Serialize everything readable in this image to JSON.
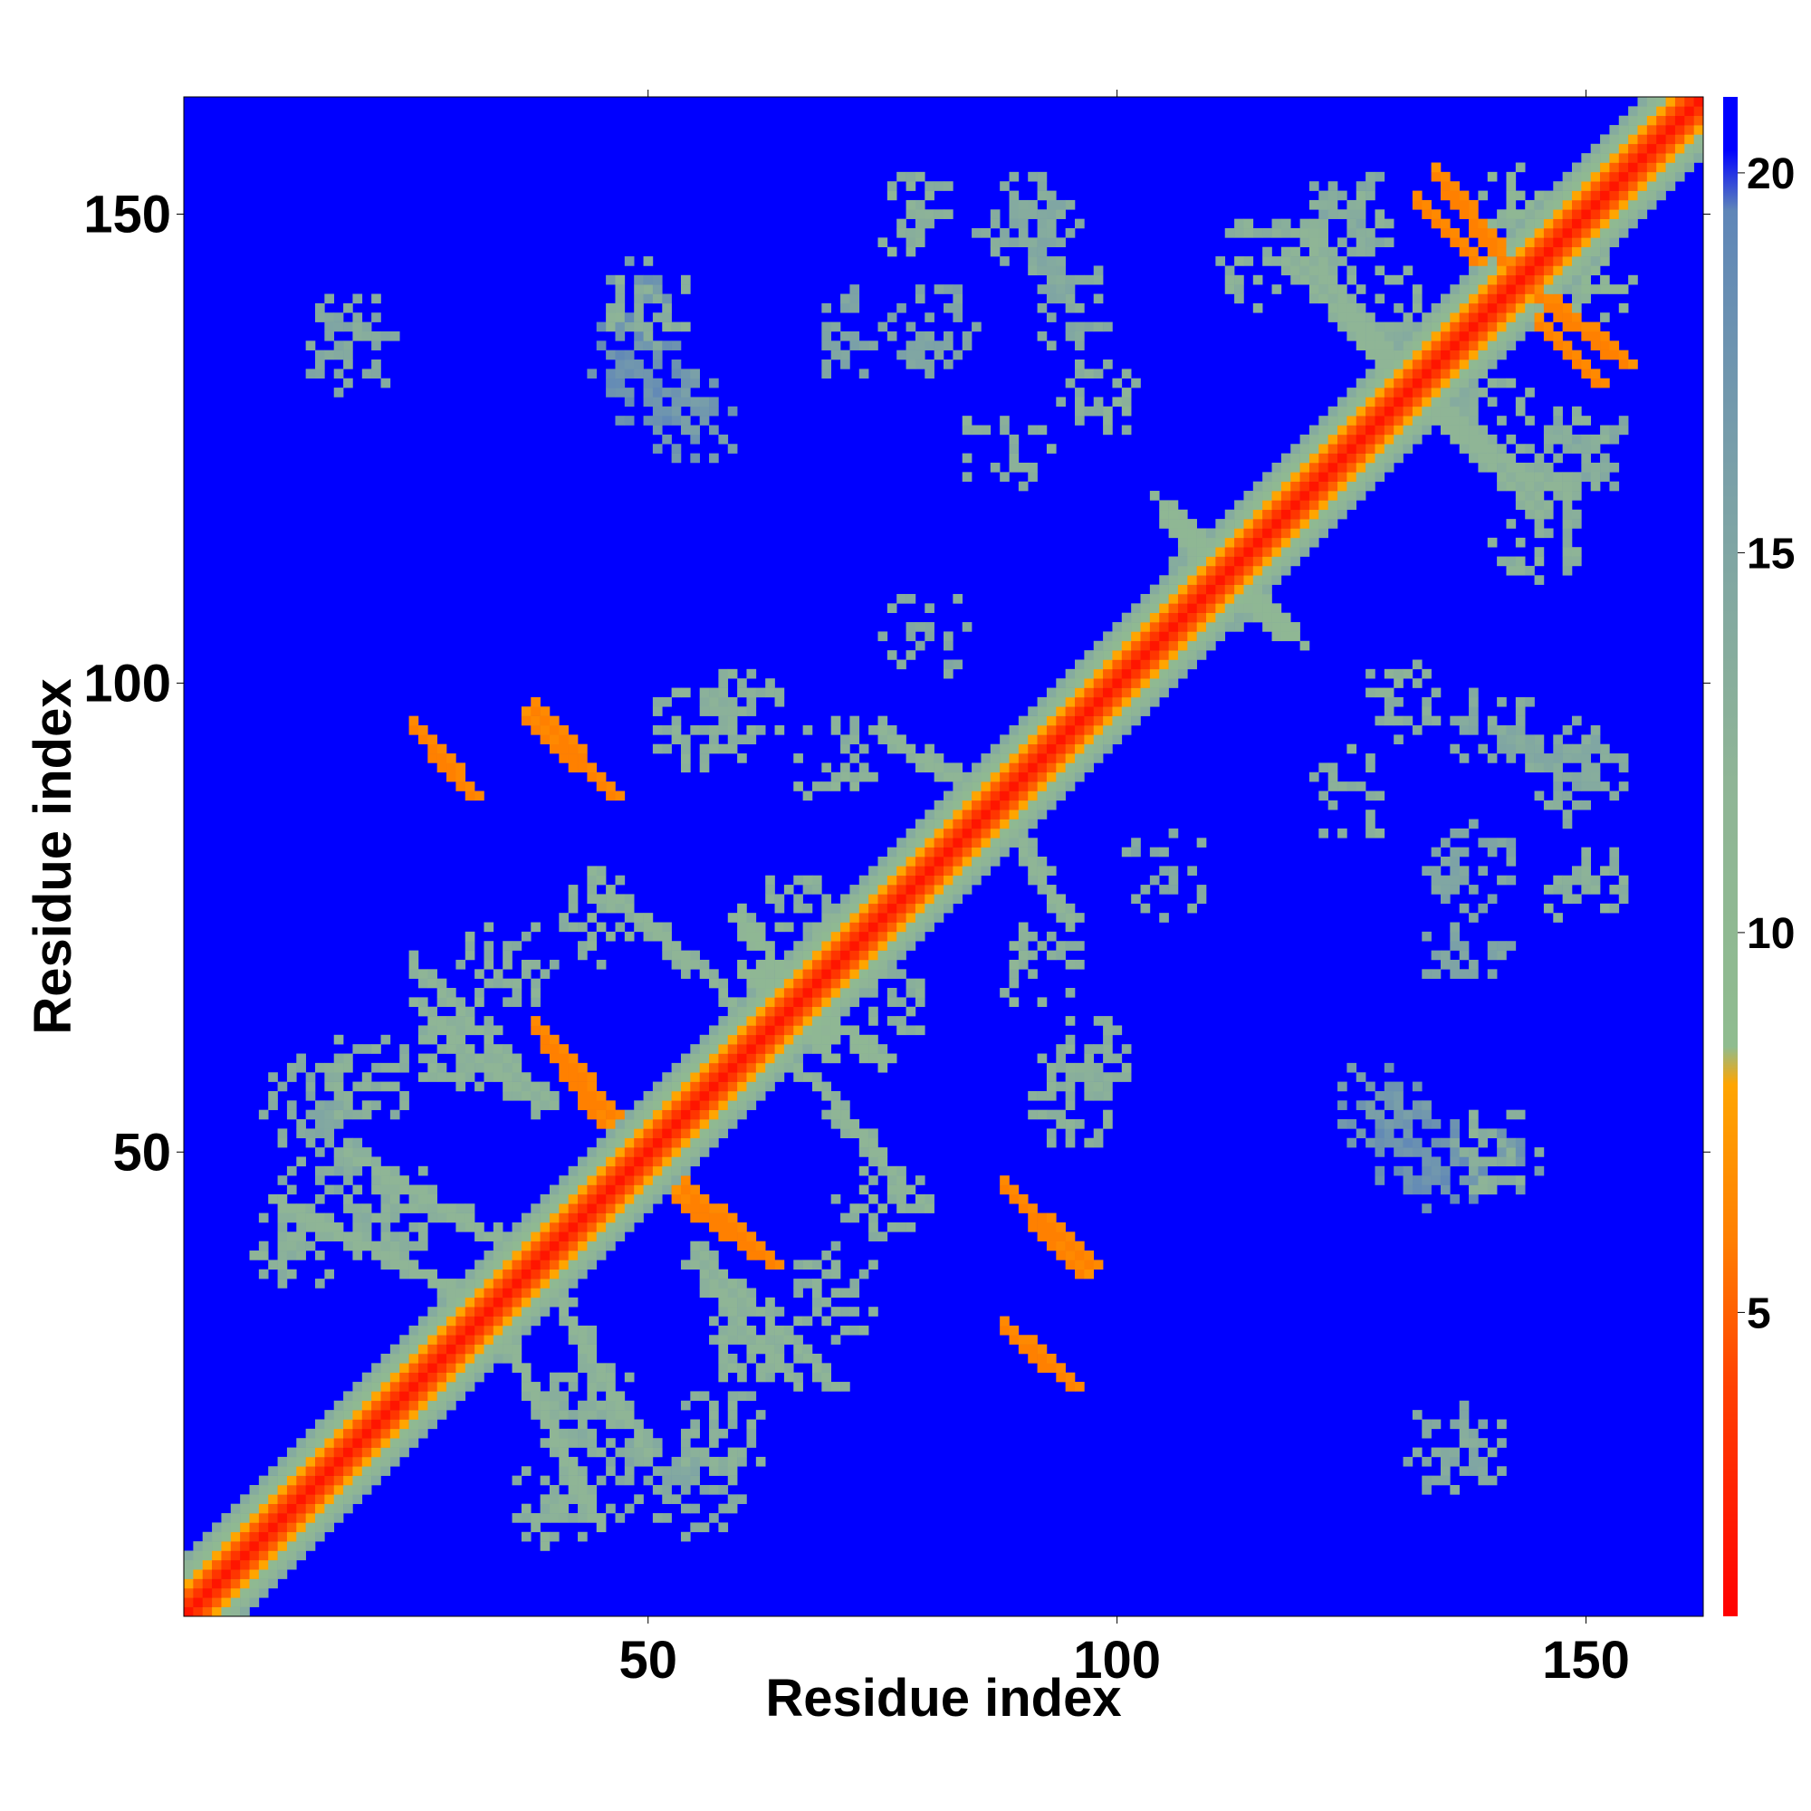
{
  "chart_data": {
    "type": "heatmap",
    "title": "",
    "xlabel": "Residue index",
    "ylabel": "Residue index",
    "xlim": [
      1,
      162
    ],
    "ylim": [
      1,
      162
    ],
    "xticks": [
      50,
      100,
      150
    ],
    "yticks": [
      50,
      100,
      150
    ],
    "colorbar": {
      "range": [
        1,
        21
      ],
      "ticks": [
        5,
        10,
        15,
        20
      ],
      "stops": [
        {
          "value": 1,
          "color": "#ff0000"
        },
        {
          "value": 4,
          "color": "#ff4000"
        },
        {
          "value": 6,
          "color": "#ff8000"
        },
        {
          "value": 8,
          "color": "#ffa500"
        },
        {
          "value": 8.5,
          "color": "#8fbc8f"
        },
        {
          "value": 12,
          "color": "#8fb596"
        },
        {
          "value": 16,
          "color": "#7aa0a8"
        },
        {
          "value": 19.5,
          "color": "#5f86b8"
        },
        {
          "value": 20.3,
          "color": "#0000ff"
        },
        {
          "value": 21,
          "color": "#0000ff"
        }
      ]
    },
    "background_value": 21,
    "diagonal_band_profile": [
      {
        "offset": 0,
        "value": 2
      },
      {
        "offset": 1,
        "value": 3.5
      },
      {
        "offset": 2,
        "value": 5
      },
      {
        "offset": 3,
        "value": 8
      },
      {
        "offset": 4,
        "value": 10
      },
      {
        "offset": 5,
        "value": 12
      },
      {
        "offset": 6,
        "value": 14
      }
    ],
    "contact_segments": [
      {
        "from": [
          26,
          94
        ],
        "to": [
          31,
          88
        ],
        "value": 6
      },
      {
        "from": [
          37,
          96
        ],
        "to": [
          46,
          88
        ],
        "value": 6
      },
      {
        "from": [
          38,
          63
        ],
        "to": [
          46,
          54
        ],
        "value": 6
      },
      {
        "from": [
          53,
          45
        ],
        "to": [
          63,
          38
        ],
        "value": 6
      },
      {
        "from": [
          88,
          46
        ],
        "to": [
          97,
          38
        ],
        "value": 6
      },
      {
        "from": [
          88,
          31
        ],
        "to": [
          95,
          25
        ],
        "value": 6
      },
      {
        "from": [
          134,
          154
        ],
        "to": [
          141,
          145
        ],
        "value": 6
      },
      {
        "from": [
          145,
          138
        ],
        "to": [
          151,
          132
        ],
        "value": 6
      },
      {
        "from": [
          104,
          120
        ],
        "to": [
          118,
          105
        ],
        "value": 11
      },
      {
        "from": [
          130,
          130
        ],
        "to": [
          148,
          120
        ],
        "value": 12
      },
      {
        "from": [
          120,
          145
        ],
        "to": [
          145,
          118
        ],
        "value": 12
      },
      {
        "from": [
          60,
          70
        ],
        "to": [
          75,
          60
        ],
        "value": 11
      },
      {
        "from": [
          44,
          80
        ],
        "to": [
          60,
          65
        ],
        "value": 12
      },
      {
        "from": [
          25,
          66
        ],
        "to": [
          38,
          55
        ],
        "value": 12
      },
      {
        "from": [
          55,
          40
        ],
        "to": [
          70,
          25
        ],
        "value": 12
      },
      {
        "from": [
          40,
          35
        ],
        "to": [
          50,
          18
        ],
        "value": 12
      },
      {
        "from": [
          85,
          90
        ],
        "to": [
          95,
          75
        ],
        "value": 12
      },
      {
        "from": [
          10,
          45
        ],
        "to": [
          30,
          35
        ],
        "value": 12
      }
    ],
    "contact_clusters": [
      {
        "center": [
          50,
          140
        ],
        "value": 12
      },
      {
        "center": [
          48,
          135
        ],
        "value": 17
      },
      {
        "center": [
          18,
          137
        ],
        "value": 13
      },
      {
        "center": [
          55,
          128
        ],
        "value": 16
      },
      {
        "center": [
          72,
          137
        ],
        "value": 14
      },
      {
        "center": [
          90,
          148
        ],
        "value": 13
      },
      {
        "center": [
          115,
          145
        ],
        "value": 12
      },
      {
        "center": [
          125,
          150
        ],
        "value": 13
      },
      {
        "center": [
          140,
          130
        ],
        "value": 12
      },
      {
        "center": [
          148,
          125
        ],
        "value": 12
      },
      {
        "center": [
          60,
          97
        ],
        "value": 12
      },
      {
        "center": [
          70,
          92
        ],
        "value": 12
      },
      {
        "center": [
          110,
          110
        ],
        "value": 12
      },
      {
        "center": [
          130,
          98
        ],
        "value": 12
      },
      {
        "center": [
          140,
          95
        ],
        "value": 13
      },
      {
        "center": [
          125,
          88
        ],
        "value": 12
      },
      {
        "center": [
          150,
          92
        ],
        "value": 13
      },
      {
        "center": [
          105,
          80
        ],
        "value": 13
      },
      {
        "center": [
          138,
          80
        ],
        "value": 14
      },
      {
        "center": [
          150,
          78
        ],
        "value": 12
      },
      {
        "center": [
          20,
          58
        ],
        "value": 12
      },
      {
        "center": [
          30,
          62
        ],
        "value": 12
      },
      {
        "center": [
          15,
          50
        ],
        "value": 13
      },
      {
        "center": [
          22,
          43
        ],
        "value": 12
      },
      {
        "center": [
          35,
          70
        ],
        "value": 12
      },
      {
        "center": [
          65,
          75
        ],
        "value": 12
      },
      {
        "center": [
          95,
          55
        ],
        "value": 12
      },
      {
        "center": [
          132,
          50
        ],
        "value": 17
      },
      {
        "center": [
          140,
          48
        ],
        "value": 16
      },
      {
        "center": [
          40,
          12
        ],
        "value": 12
      },
      {
        "center": [
          55,
          13
        ],
        "value": 13
      },
      {
        "center": [
          60,
          30
        ],
        "value": 12
      },
      {
        "center": [
          44,
          23
        ],
        "value": 12
      },
      {
        "center": [
          135,
          18
        ],
        "value": 14
      },
      {
        "center": [
          75,
          45
        ],
        "value": 12
      },
      {
        "center": [
          150,
          143
        ],
        "value": 11
      }
    ]
  }
}
